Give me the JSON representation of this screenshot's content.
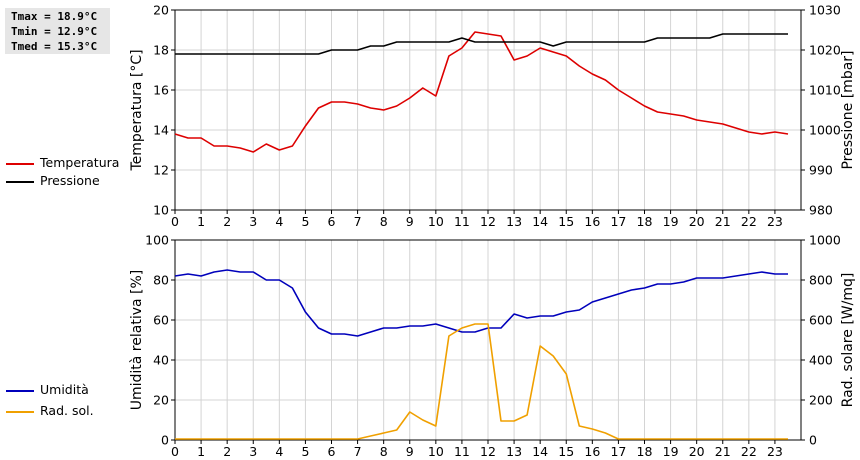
{
  "stats": {
    "tmax": "Tmax = 18.9°C",
    "tmin": "Tmin = 12.9°C",
    "tmed": "Tmed = 15.3°C"
  },
  "chart_data": [
    {
      "type": "line",
      "xlim": [
        0,
        24
      ],
      "x_ticks": [
        0,
        1,
        2,
        3,
        4,
        5,
        6,
        7,
        8,
        9,
        10,
        11,
        12,
        13,
        14,
        15,
        16,
        17,
        18,
        19,
        20,
        21,
        22,
        23
      ],
      "ylabel": "Temperatura [°C]",
      "ylim": [
        10,
        20
      ],
      "y_ticks": [
        10,
        12,
        14,
        16,
        18,
        20
      ],
      "y2label": "Pressione [mbar]",
      "y2lim": [
        980,
        1030
      ],
      "y2_ticks": [
        980,
        990,
        1000,
        1010,
        1020,
        1030
      ],
      "grid": true,
      "legend_position": "left",
      "series": [
        {
          "name": "Temperatura",
          "axis": "left",
          "color": "#dd0000",
          "x": [
            0,
            0.5,
            1,
            1.5,
            2,
            2.5,
            3,
            3.5,
            4,
            4.5,
            5,
            5.5,
            6,
            6.5,
            7,
            7.5,
            8,
            8.5,
            9,
            9.5,
            10,
            10.5,
            11,
            11.5,
            12,
            12.5,
            13,
            13.5,
            14,
            14.5,
            15,
            15.5,
            16,
            16.5,
            17,
            17.5,
            18,
            18.5,
            19,
            19.5,
            20,
            20.5,
            21,
            21.5,
            22,
            22.5,
            23,
            23.5
          ],
          "values": [
            13.8,
            13.6,
            13.6,
            13.2,
            13.2,
            13.1,
            12.9,
            13.3,
            13.0,
            13.2,
            14.2,
            15.1,
            15.4,
            15.4,
            15.3,
            15.1,
            15.0,
            15.2,
            15.6,
            16.1,
            15.7,
            17.7,
            18.1,
            18.9,
            18.8,
            18.7,
            17.5,
            17.7,
            18.1,
            17.9,
            17.7,
            17.2,
            16.8,
            16.5,
            16.0,
            15.6,
            15.2,
            14.9,
            14.8,
            14.7,
            14.5,
            14.4,
            14.3,
            14.1,
            13.9,
            13.8,
            13.9,
            13.8
          ]
        },
        {
          "name": "Pressione",
          "axis": "right",
          "color": "#000000",
          "x": [
            0,
            5.5,
            6,
            7,
            7.5,
            8,
            8.5,
            10.5,
            11,
            11.5,
            13.5,
            14,
            14.5,
            15,
            18,
            18.5,
            20.5,
            21,
            21.5,
            23.5
          ],
          "values": [
            1019,
            1019,
            1020,
            1020,
            1021,
            1021,
            1022,
            1022,
            1023,
            1022,
            1022,
            1022,
            1021,
            1022,
            1022,
            1023,
            1023,
            1024,
            1024,
            1024
          ]
        }
      ]
    },
    {
      "type": "line",
      "xlim": [
        0,
        24
      ],
      "x_ticks": [
        0,
        1,
        2,
        3,
        4,
        5,
        6,
        7,
        8,
        9,
        10,
        11,
        12,
        13,
        14,
        15,
        16,
        17,
        18,
        19,
        20,
        21,
        22,
        23
      ],
      "ylabel": "Umidità relativa [%]",
      "ylim": [
        0,
        100
      ],
      "y_ticks": [
        0,
        20,
        40,
        60,
        80,
        100
      ],
      "y2label": "Rad. solare [W/mq]",
      "y2lim": [
        0,
        1000
      ],
      "y2_ticks": [
        0,
        200,
        400,
        600,
        800,
        1000
      ],
      "grid": true,
      "legend_position": "left",
      "series": [
        {
          "name": "Umidità",
          "axis": "left",
          "color": "#0000bb",
          "x": [
            0,
            0.5,
            1,
            1.5,
            2,
            2.5,
            3,
            3.5,
            4,
            4.5,
            5,
            5.5,
            6,
            6.5,
            7,
            7.5,
            8,
            8.5,
            9,
            9.5,
            10,
            10.5,
            11,
            11.5,
            12,
            12.5,
            13,
            13.5,
            14,
            14.5,
            15,
            15.5,
            16,
            16.5,
            17,
            17.5,
            18,
            18.5,
            19,
            19.5,
            20,
            20.5,
            21,
            21.5,
            22,
            22.5,
            23,
            23.5
          ],
          "values": [
            82,
            83,
            82,
            84,
            85,
            84,
            84,
            80,
            80,
            76,
            64,
            56,
            53,
            53,
            52,
            54,
            56,
            56,
            57,
            57,
            58,
            56,
            54,
            54,
            56,
            56,
            63,
            61,
            62,
            62,
            64,
            65,
            69,
            71,
            73,
            75,
            76,
            78,
            78,
            79,
            81,
            81,
            81,
            82,
            83,
            84,
            83,
            83
          ]
        },
        {
          "name": "Rad. sol.",
          "axis": "right",
          "color": "#f0a000",
          "x": [
            0,
            1,
            2,
            3,
            4,
            5,
            6,
            7,
            7.5,
            8,
            8.5,
            9,
            9.5,
            10,
            10.5,
            11,
            11.5,
            12,
            12.5,
            13,
            13.5,
            14,
            14.5,
            15,
            15.5,
            16,
            16.5,
            17,
            18,
            19,
            20,
            21,
            22,
            23,
            23.5
          ],
          "values": [
            5,
            5,
            5,
            5,
            5,
            5,
            5,
            5,
            20,
            35,
            50,
            140,
            100,
            70,
            520,
            560,
            580,
            580,
            95,
            95,
            125,
            470,
            420,
            330,
            70,
            55,
            35,
            5,
            5,
            5,
            5,
            5,
            5,
            5,
            5
          ]
        }
      ]
    }
  ]
}
